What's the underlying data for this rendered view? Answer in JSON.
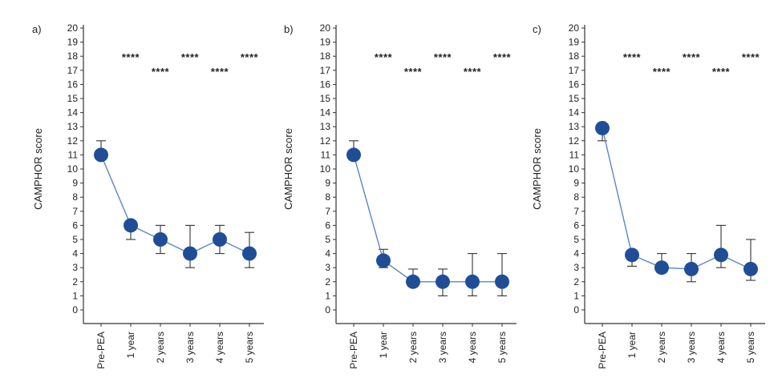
{
  "colors": {
    "marker": "#1f4e96",
    "line": "#5b86c4",
    "axis": "#333333",
    "errorbar": "#333333"
  },
  "chart_data": [
    {
      "type": "line",
      "panel_label": "a)",
      "ylabel": "CAMPHOR score",
      "ylim": [
        0,
        20
      ],
      "yticks": [
        0,
        1,
        2,
        3,
        4,
        5,
        6,
        7,
        8,
        9,
        10,
        11,
        12,
        13,
        14,
        15,
        16,
        17,
        18,
        19,
        20
      ],
      "categories": [
        "Pre-PEA",
        "1 year",
        "2 years",
        "3 years",
        "4 years",
        "5 years"
      ],
      "values": [
        11,
        6,
        5,
        4,
        5,
        4
      ],
      "error_low": [
        11,
        5,
        4,
        3,
        4,
        3
      ],
      "error_high": [
        12,
        6,
        6,
        6,
        6,
        5.5
      ],
      "significance": [
        "",
        "****",
        "****",
        "****",
        "****",
        "****"
      ],
      "sig_y": [
        null,
        18,
        17,
        18,
        17,
        18
      ]
    },
    {
      "type": "line",
      "panel_label": "b)",
      "ylabel": "CAMPHOR score",
      "ylim": [
        0,
        20
      ],
      "yticks": [
        0,
        1,
        2,
        3,
        4,
        5,
        6,
        7,
        8,
        9,
        10,
        11,
        12,
        13,
        14,
        15,
        16,
        17,
        18,
        19,
        20
      ],
      "categories": [
        "Pre-PEA",
        "1 year",
        "2 years",
        "3 years",
        "4 years",
        "5 years"
      ],
      "values": [
        11,
        3.5,
        2,
        2,
        2,
        2
      ],
      "error_low": [
        11,
        3,
        2,
        1,
        1,
        1
      ],
      "error_high": [
        12,
        4.3,
        2.9,
        2.9,
        4,
        4
      ],
      "significance": [
        "",
        "****",
        "****",
        "****",
        "****",
        "****"
      ],
      "sig_y": [
        null,
        18,
        17,
        18,
        17,
        18
      ]
    },
    {
      "type": "line",
      "panel_label": "c)",
      "ylabel": "CAMPHOR score",
      "ylim": [
        0,
        20
      ],
      "yticks": [
        0,
        1,
        2,
        3,
        4,
        5,
        6,
        7,
        8,
        9,
        10,
        11,
        12,
        13,
        14,
        15,
        16,
        17,
        18,
        19,
        20
      ],
      "categories": [
        "Pre-PEA",
        "1 year",
        "2 years",
        "3 years",
        "4 years",
        "5 years"
      ],
      "values": [
        12.9,
        3.9,
        3,
        2.9,
        3.9,
        2.9
      ],
      "error_low": [
        12,
        3.1,
        3,
        2,
        3,
        2.1
      ],
      "error_high": [
        12.9,
        3.9,
        4,
        4,
        6,
        5
      ],
      "significance": [
        "",
        "****",
        "****",
        "****",
        "****",
        "****"
      ],
      "sig_y": [
        null,
        18,
        17,
        18,
        17,
        18
      ]
    }
  ]
}
